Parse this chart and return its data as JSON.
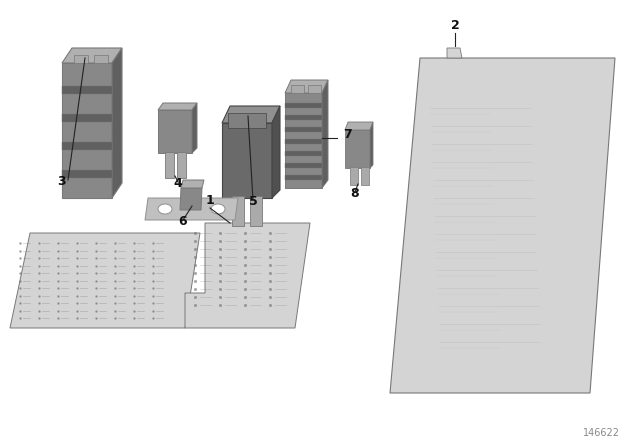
{
  "background_color": "#ffffff",
  "part_number": "146622",
  "gray_light": "#d4d4d4",
  "gray_mid": "#aaaaaa",
  "gray_dark": "#787878",
  "gray_component": "#888888",
  "gray_comp_dark": "#606060",
  "gray_comp_light": "#b0b0b0",
  "silver": "#c0c0c0",
  "silver_dark": "#909090",
  "line_color": "#222222",
  "label_color": "#111111"
}
